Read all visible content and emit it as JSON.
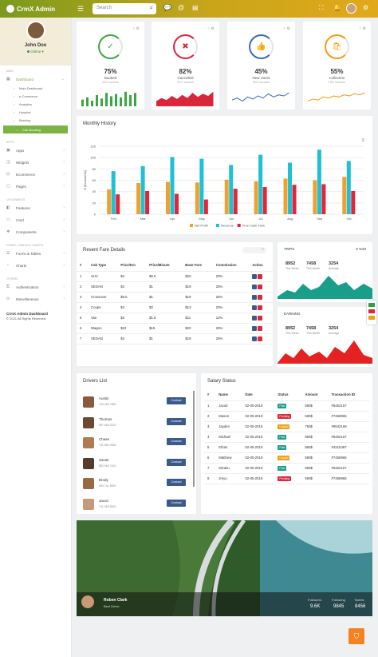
{
  "app": {
    "title": "CrmX Admin"
  },
  "search": {
    "placeholder": "Search"
  },
  "profile": {
    "name": "John Doe",
    "status": "Online"
  },
  "sidebar": {
    "sections": [
      "MAIN",
      "APPS",
      "UI ELEMENTS",
      "FORMS, TABLES & CHARTS",
      "OTHERS"
    ],
    "dashboard": "Dashboard",
    "subs": [
      "Main Dashboard",
      "e-Commerce",
      "Analytics",
      "Hospital",
      "Banking",
      "Cab Booking"
    ],
    "apps": [
      "Apps",
      "Widgets",
      "Ecommerce",
      "Pages"
    ],
    "ui": [
      "Features",
      "Card",
      "Components"
    ],
    "forms": [
      "Forms & Tables",
      "Charts"
    ],
    "others": [
      "Authentication",
      "Miscellaneous"
    ],
    "copyright_title": "CrmX Admin Dashboard",
    "copyright": "© 2021 All Rights Reserved"
  },
  "stats": [
    {
      "value": "75%",
      "label": "Booked",
      "sub": "20% Increase",
      "color": "#3aa842",
      "icon": "✓"
    },
    {
      "value": "82%",
      "label": "Cancelled",
      "sub": "41% Increase",
      "color": "#d9263a",
      "icon": "✖"
    },
    {
      "value": "45%",
      "label": "New Users",
      "sub": "90% Increase",
      "color": "#3a6bb5",
      "icon": "👍"
    },
    {
      "value": "55%",
      "label": "Collection",
      "sub": "15% Increase",
      "color": "#f39c12",
      "icon": "🛍"
    }
  ],
  "monthly": {
    "title": "Monthly History"
  },
  "chart_data": {
    "type": "bar",
    "categories": [
      "Feb",
      "Mar",
      "Apr",
      "May",
      "Jun",
      "Jul",
      "Aug",
      "Sep",
      "Oct"
    ],
    "series": [
      {
        "name": "Net Profit",
        "color": "#f0a030",
        "values": [
          44,
          55,
          57,
          56,
          61,
          58,
          63,
          60,
          66
        ]
      },
      {
        "name": "Revenue",
        "color": "#1ec0d6",
        "values": [
          76,
          85,
          101,
          98,
          87,
          105,
          91,
          114,
          94
        ]
      },
      {
        "name": "Free Cash Flow",
        "color": "#e02638",
        "values": [
          35,
          41,
          36,
          26,
          45,
          48,
          52,
          53,
          41
        ]
      }
    ],
    "ylabel": "$ (thousands)",
    "yticks": [
      0,
      20,
      40,
      60,
      80,
      100,
      120
    ],
    "ylim": [
      0,
      120
    ],
    "legend": "bottom"
  },
  "fare": {
    "title": "Resent Fare Details",
    "columns": [
      "#",
      "Cab Type",
      "Price/Km",
      "Price/Minute",
      "Base Fare",
      "Commission",
      "Action"
    ],
    "rows": [
      [
        "1",
        "SUV",
        "$4",
        "$0.5",
        "$20",
        "20%"
      ],
      [
        "2",
        "SEDAN",
        "$4",
        "$1",
        "$19",
        "25%"
      ],
      [
        "3",
        "Crossover",
        "$6.5",
        "$1",
        "$19",
        "25%"
      ],
      [
        "4",
        "Coupe",
        "$4",
        "$2",
        "$13",
        "23%"
      ],
      [
        "5",
        "Van",
        "$3",
        "$1.5",
        "$11",
        "12%"
      ],
      [
        "6",
        "Wagon",
        "$22",
        "$15",
        "$20",
        "25%"
      ],
      [
        "7",
        "SEDAN",
        "$4",
        "$1",
        "$19",
        "25%"
      ]
    ]
  },
  "trips": {
    "label": "TRIPS",
    "change": "%20",
    "values": [
      {
        "v": "8952",
        "k": "This Week"
      },
      {
        "v": "7458",
        "k": "This Month"
      },
      {
        "v": "3254",
        "k": "Average"
      }
    ]
  },
  "earning": {
    "label": "EARNING",
    "values": [
      {
        "v": "8952",
        "k": "This Week"
      },
      {
        "v": "7458",
        "k": "This Month"
      },
      {
        "v": "3254",
        "k": "Average"
      }
    ]
  },
  "drivers": {
    "title": "Drivers List",
    "button": "Contact",
    "items": [
      {
        "name": "Austin",
        "phone": "123 456 7890"
      },
      {
        "name": "Thomas",
        "phone": "987 654 3210"
      },
      {
        "name": "Chase",
        "phone": "741 852 9630"
      },
      {
        "name": "Xavier",
        "phone": "852 963 7410"
      },
      {
        "name": "Brody",
        "phone": "963 741 8520"
      },
      {
        "name": "Jaxon",
        "phone": "741 963 8520"
      }
    ]
  },
  "salary": {
    "title": "Salary Status",
    "columns": [
      "#",
      "Name",
      "Date",
      "Status",
      "Amount",
      "Transaction ID"
    ],
    "rows": [
      [
        "1",
        "Jacob",
        "02-05-2019",
        "Paid",
        "590$",
        "#6452157"
      ],
      [
        "2",
        "Mason",
        "02-05-2019",
        "Pending",
        "590$",
        "#7458965"
      ],
      [
        "3",
        "Jayden",
        "02-05-2019",
        "Unpaid",
        "750$",
        "#8542169"
      ],
      [
        "4",
        "Michael",
        "02-05-2019",
        "Paid",
        "960$",
        "#6452157"
      ],
      [
        "5",
        "Ethan",
        "02-05-2019",
        "Paid",
        "860$",
        "#4215487"
      ],
      [
        "6",
        "Matthew",
        "02-05-2019",
        "Unpaid",
        "590$",
        "#7458965"
      ],
      [
        "7",
        "Micaku",
        "02-05-2019",
        "Paid",
        "590$",
        "#6452157"
      ],
      [
        "8",
        "Jreyu",
        "02-05-2019",
        "Pending",
        "590$",
        "#7458965"
      ]
    ]
  },
  "hero": {
    "name": "Roben Clark",
    "role": "Best Driver",
    "stats": [
      {
        "k": "Followers",
        "v": "9.6K"
      },
      {
        "k": "Following",
        "v": "9845"
      },
      {
        "k": "Tweets",
        "v": "8456"
      }
    ]
  }
}
